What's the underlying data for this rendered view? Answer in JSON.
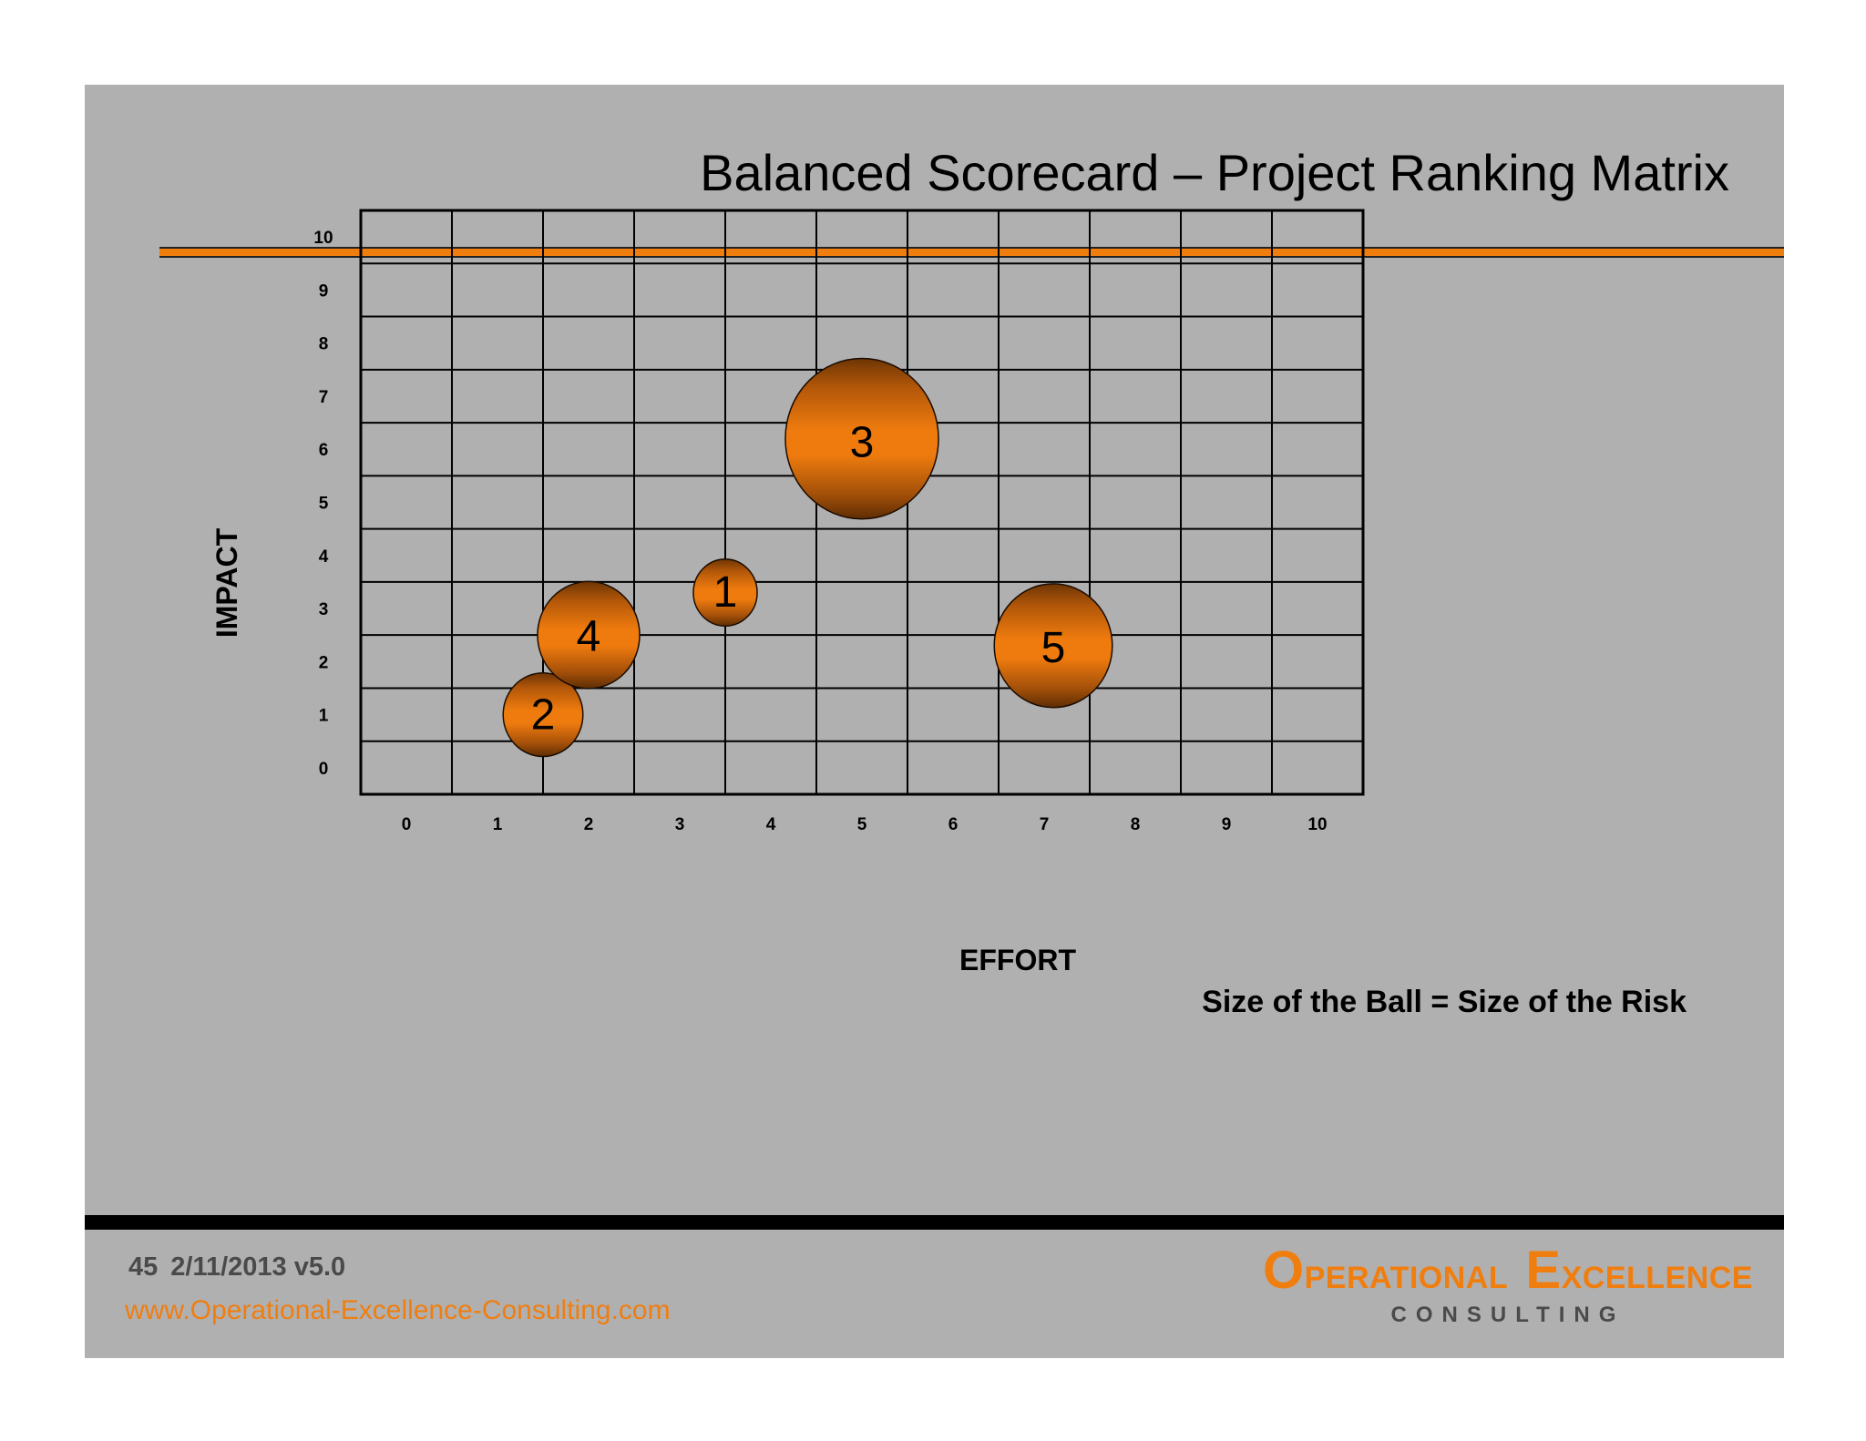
{
  "slide": {
    "title": "Balanced Scorecard – Project Ranking Matrix",
    "footer": {
      "page_number": "45",
      "date_version": "2/11/2013 v5.0",
      "url": "www.Operational-Excellence-Consulting.com",
      "logo": {
        "word1_initial": "O",
        "word1_rest": "PERATIONAL",
        "word2_initial": "E",
        "word2_rest": "XCELLENCE",
        "subtitle": "CONSULTING"
      }
    },
    "colors": {
      "background": "#b1b0b1",
      "accent": "#f07e0f",
      "bubble_edge": "#7a3c05",
      "grid": "#000000"
    }
  },
  "chart_data": {
    "type": "scatter",
    "variant": "bubble",
    "xlabel": "EFFORT",
    "ylabel": "IMPACT",
    "xlim": [
      0,
      10
    ],
    "ylim": [
      0,
      10
    ],
    "x_ticks": [
      "0",
      "1",
      "2",
      "3",
      "4",
      "5",
      "6",
      "7",
      "8",
      "9",
      "10"
    ],
    "y_ticks": [
      "0",
      "1",
      "2",
      "3",
      "4",
      "5",
      "6",
      "7",
      "8",
      "9",
      "10"
    ],
    "grid": true,
    "legend_note": "Size of the Ball = Size of the Risk",
    "points": [
      {
        "label": "1",
        "x": 3.5,
        "y": 3.3,
        "size": 1.0
      },
      {
        "label": "2",
        "x": 1.5,
        "y": 1.0,
        "size": 1.25
      },
      {
        "label": "3",
        "x": 5.0,
        "y": 6.2,
        "size": 2.4
      },
      {
        "label": "4",
        "x": 2.0,
        "y": 2.5,
        "size": 1.6
      },
      {
        "label": "5",
        "x": 7.1,
        "y": 2.3,
        "size": 1.85
      }
    ]
  }
}
